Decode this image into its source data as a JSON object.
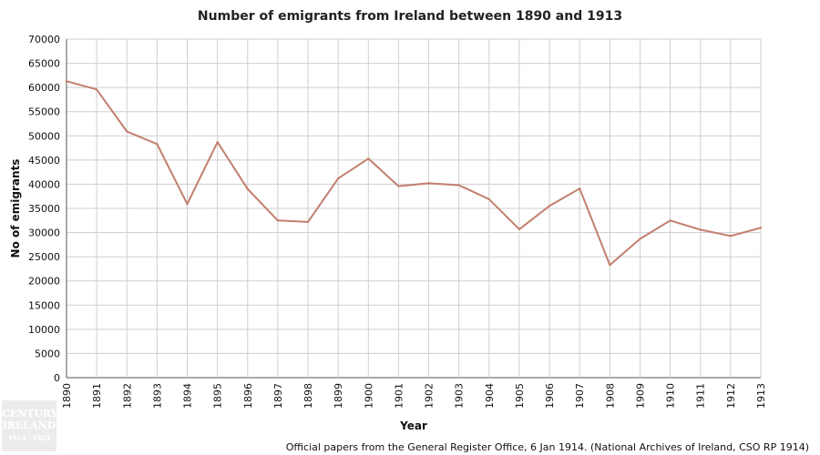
{
  "chart_data": {
    "type": "line",
    "title": "Number of emigrants from Ireland between 1890 and 1913",
    "xlabel": "Year",
    "ylabel": "No of emigrants",
    "ylim": [
      0,
      70000
    ],
    "yticks": [
      0,
      5000,
      10000,
      15000,
      20000,
      25000,
      30000,
      35000,
      40000,
      45000,
      50000,
      55000,
      60000,
      65000,
      70000
    ],
    "categories": [
      "1890",
      "1891",
      "1892",
      "1893",
      "1894",
      "1895",
      "1896",
      "1897",
      "1898",
      "1899",
      "1900",
      "1901",
      "1902",
      "1903",
      "1904",
      "1905",
      "1906",
      "1907",
      "1908",
      "1909",
      "1910",
      "1911",
      "1912",
      "1913"
    ],
    "series": [
      {
        "values": [
          61300,
          59600,
          50900,
          48300,
          35900,
          48700,
          39000,
          32500,
          32200,
          41200,
          45300,
          39600,
          40200,
          39800,
          36900,
          30700,
          35500,
          39100,
          23300,
          28700,
          32500,
          30600,
          29300,
          31000
        ],
        "color": "#c27f6e"
      }
    ],
    "grid": true,
    "source_note": "Official papers from the General Register Office, 6 Jan 1914. (National Archives of Ireland, CSO RP 1914)"
  },
  "logo": {
    "line1": "CENTURY",
    "line2": "IRELAND",
    "line3": "1913 · 1923"
  }
}
